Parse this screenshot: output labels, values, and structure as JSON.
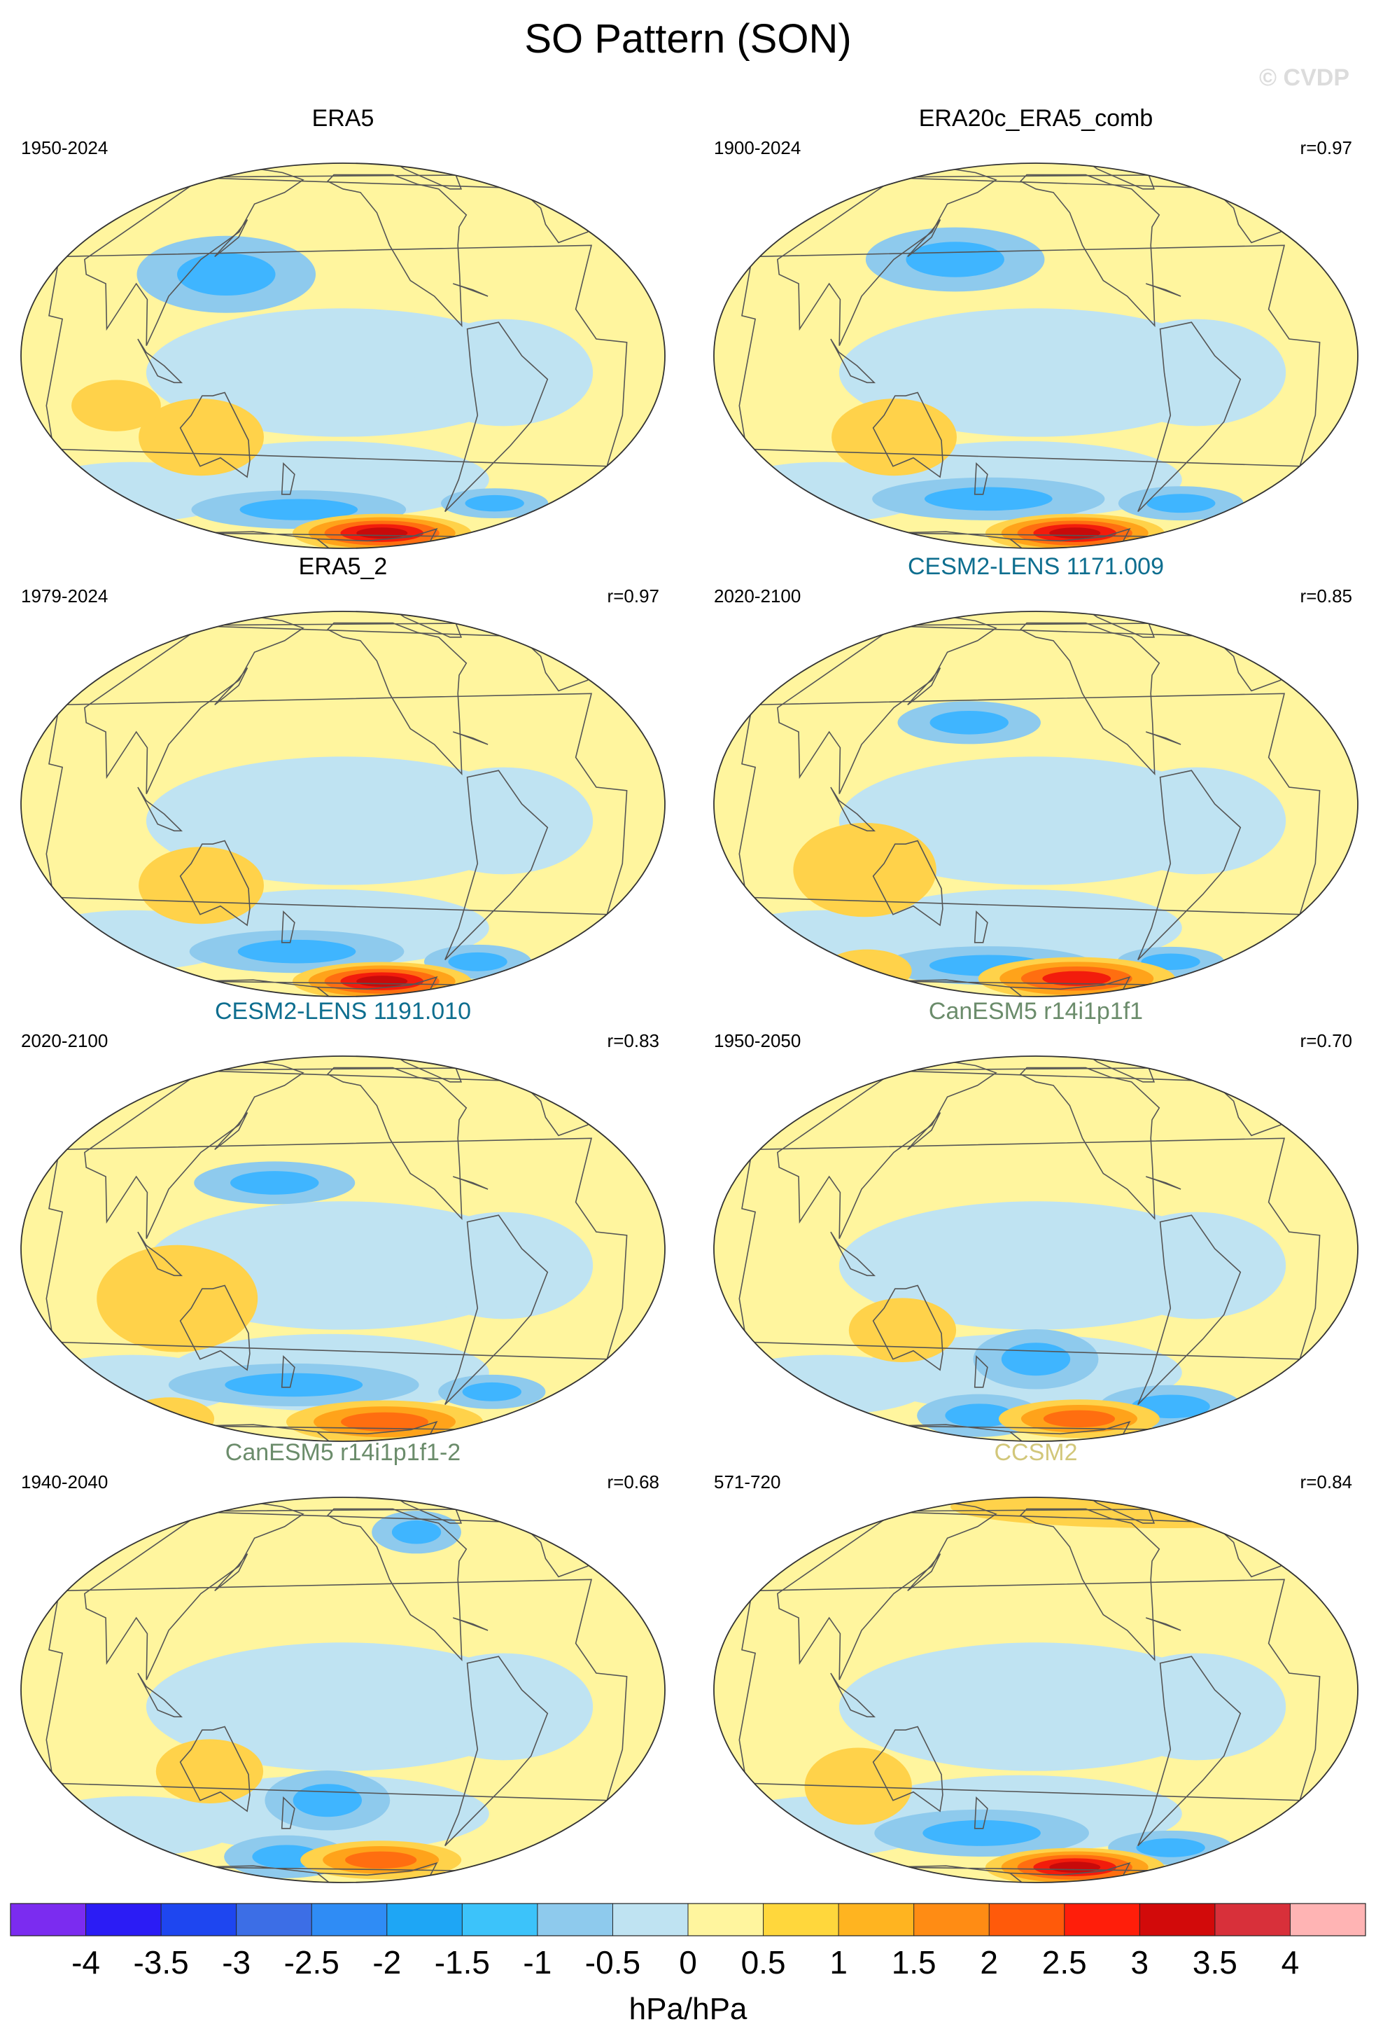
{
  "figure": {
    "title": "SO Pattern (SON)",
    "watermark": "© CVDP",
    "colorbar_units": "hPa/hPa"
  },
  "palette": {
    "blue_light": "#bfe3f2",
    "blue_mid": "#8ecaed",
    "blue": "#3fb5ff",
    "blue_dark": "#1f8ff0",
    "yellow": "#fff59e",
    "gold": "#ffd24a",
    "orange": "#ffa31a",
    "red_orange": "#ff6e10",
    "red": "#f21c0c",
    "dark_red": "#c80a0a",
    "coast": "#555555"
  },
  "chart_data": {
    "type": "heatmap",
    "title": "SO Pattern (SON)",
    "units": "hPa/hPa",
    "colorbar": {
      "tick_labels": [
        "-4",
        "-3.5",
        "-3",
        "-2.5",
        "-2",
        "-1.5",
        "-1",
        "-0.5",
        "0",
        "0.5",
        "1",
        "1.5",
        "2",
        "2.5",
        "3",
        "3.5",
        "4"
      ],
      "colors": [
        "#7b2cf0",
        "#2b1cf5",
        "#1e46f0",
        "#3c6ee6",
        "#2f8cf5",
        "#1ea6f5",
        "#3cc3fa",
        "#8ecaed",
        "#bfe3f2",
        "#fff59e",
        "#ffd73c",
        "#ffb420",
        "#ff8c14",
        "#ff5a0a",
        "#ff1e0a",
        "#d20a0a",
        "#d8303a",
        "#ffb4b4"
      ]
    },
    "panels": [
      {
        "name": "ERA5",
        "period": "1950-2024",
        "r": "",
        "title_color": "#000000",
        "features": [
          {
            "kind": "neg",
            "lon": 175,
            "lat": -53,
            "rx": 60,
            "ry": 9
          },
          {
            "kind": "neg",
            "lon": -35,
            "lat": -50,
            "rx": 30,
            "ry": 7
          },
          {
            "kind": "neg",
            "lon": 140,
            "lat": 25,
            "rx": 50,
            "ry": 18
          },
          {
            "kind": "pos",
            "lon": 125,
            "lat": -25,
            "rx": 35,
            "ry": 18
          },
          {
            "kind": "pos",
            "lon": 80,
            "lat": -15,
            "rx": 25,
            "ry": 12
          },
          {
            "kind": "core",
            "lon": -110,
            "lat": -67,
            "amp": 3.2,
            "rx": 50,
            "ry": 9
          }
        ]
      },
      {
        "name": "ERA20c_ERA5_comb",
        "period": "1900-2024",
        "r": "r=0.97",
        "title_color": "#000000",
        "features": [
          {
            "kind": "neg",
            "lon": 175,
            "lat": -48,
            "rx": 65,
            "ry": 10
          },
          {
            "kind": "neg",
            "lon": -40,
            "lat": -50,
            "rx": 35,
            "ry": 8
          },
          {
            "kind": "neg",
            "lon": 160,
            "lat": 30,
            "rx": 50,
            "ry": 15
          },
          {
            "kind": "pos",
            "lon": 125,
            "lat": -25,
            "rx": 35,
            "ry": 18
          },
          {
            "kind": "core",
            "lon": -110,
            "lat": -67,
            "amp": 3.0,
            "rx": 50,
            "ry": 9
          }
        ]
      },
      {
        "name": "ERA5_2",
        "period": "1979-2024",
        "r": "r=0.97",
        "title_color": "#000000",
        "features": [
          {
            "kind": "neg",
            "lon": 175,
            "lat": -50,
            "rx": 60,
            "ry": 10
          },
          {
            "kind": "neg",
            "lon": -40,
            "lat": -55,
            "rx": 30,
            "ry": 8
          },
          {
            "kind": "pos",
            "lon": 125,
            "lat": -25,
            "rx": 35,
            "ry": 18
          },
          {
            "kind": "core",
            "lon": -110,
            "lat": -67,
            "amp": 3.0,
            "rx": 50,
            "ry": 9
          }
        ]
      },
      {
        "name": "CESM2-LENS 1171.009",
        "period": "2020-2100",
        "r": "r=0.85",
        "title_color": "#0e6e8f",
        "features": [
          {
            "kind": "neg",
            "lon": 170,
            "lat": -57,
            "rx": 60,
            "ry": 9
          },
          {
            "kind": "neg",
            "lon": -40,
            "lat": -55,
            "rx": 30,
            "ry": 7
          },
          {
            "kind": "neg",
            "lon": 170,
            "lat": 25,
            "rx": 40,
            "ry": 10
          },
          {
            "kind": "pos",
            "lon": 110,
            "lat": -20,
            "rx": 40,
            "ry": 22
          },
          {
            "kind": "pos",
            "lon": 60,
            "lat": -60,
            "rx": 25,
            "ry": 10
          },
          {
            "kind": "core",
            "lon": -110,
            "lat": -65,
            "amp": 2.4,
            "rx": 55,
            "ry": 10
          }
        ]
      },
      {
        "name": "CESM2-LENS 1191.010",
        "period": "2020-2100",
        "r": "r=0.83",
        "title_color": "#0e6e8f",
        "features": [
          {
            "kind": "neg",
            "lon": 175,
            "lat": -45,
            "rx": 70,
            "ry": 10
          },
          {
            "kind": "neg",
            "lon": -40,
            "lat": -48,
            "rx": 30,
            "ry": 8
          },
          {
            "kind": "neg",
            "lon": 170,
            "lat": 20,
            "rx": 45,
            "ry": 10
          },
          {
            "kind": "pos",
            "lon": 115,
            "lat": -15,
            "rx": 45,
            "ry": 25
          },
          {
            "kind": "pos",
            "lon": 50,
            "lat": -62,
            "rx": 25,
            "ry": 10
          },
          {
            "kind": "core",
            "lon": -110,
            "lat": -64,
            "amp": 2.2,
            "rx": 55,
            "ry": 10
          }
        ]
      },
      {
        "name": "CanESM5 r14i1p1f1",
        "period": "1950-2050",
        "r": "r=0.70",
        "title_color": "#6b8c6b",
        "features": [
          {
            "kind": "neg",
            "lon": -150,
            "lat": -35,
            "rx": 35,
            "ry": 14
          },
          {
            "kind": "neg",
            "lon": 160,
            "lat": -60,
            "rx": 35,
            "ry": 10
          },
          {
            "kind": "neg",
            "lon": -40,
            "lat": -55,
            "rx": 40,
            "ry": 10
          },
          {
            "kind": "pos",
            "lon": 130,
            "lat": -25,
            "rx": 30,
            "ry": 15
          },
          {
            "kind": "core",
            "lon": -110,
            "lat": -62,
            "amp": 2.0,
            "rx": 45,
            "ry": 9
          }
        ]
      },
      {
        "name": "CanESM5 r14i1p1f1-2",
        "period": "1940-2040",
        "r": "r=0.68",
        "title_color": "#6b8c6b",
        "features": [
          {
            "kind": "neg",
            "lon": -160,
            "lat": -35,
            "rx": 35,
            "ry": 14
          },
          {
            "kind": "neg",
            "lon": 160,
            "lat": -60,
            "rx": 35,
            "ry": 10
          },
          {
            "kind": "neg",
            "lon": -90,
            "lat": 55,
            "rx": 25,
            "ry": 10
          },
          {
            "kind": "pos",
            "lon": 130,
            "lat": -25,
            "rx": 30,
            "ry": 15
          },
          {
            "kind": "core",
            "lon": -115,
            "lat": -62,
            "amp": 2.0,
            "rx": 45,
            "ry": 9
          }
        ]
      },
      {
        "name": "CCSM2",
        "period": "571-720",
        "r": "r=0.84",
        "title_color": "#d2c77a",
        "features": [
          {
            "kind": "neg",
            "lon": 170,
            "lat": -48,
            "rx": 60,
            "ry": 11
          },
          {
            "kind": "neg",
            "lon": -40,
            "lat": -55,
            "rx": 35,
            "ry": 8
          },
          {
            "kind": "pos",
            "lon": 100,
            "lat": -30,
            "rx": 30,
            "ry": 18
          },
          {
            "kind": "pos",
            "lon": 0,
            "lat": 72,
            "rx": 120,
            "ry": 10
          },
          {
            "kind": "core",
            "lon": -110,
            "lat": -67,
            "amp": 3.0,
            "rx": 50,
            "ry": 9
          }
        ]
      }
    ]
  }
}
